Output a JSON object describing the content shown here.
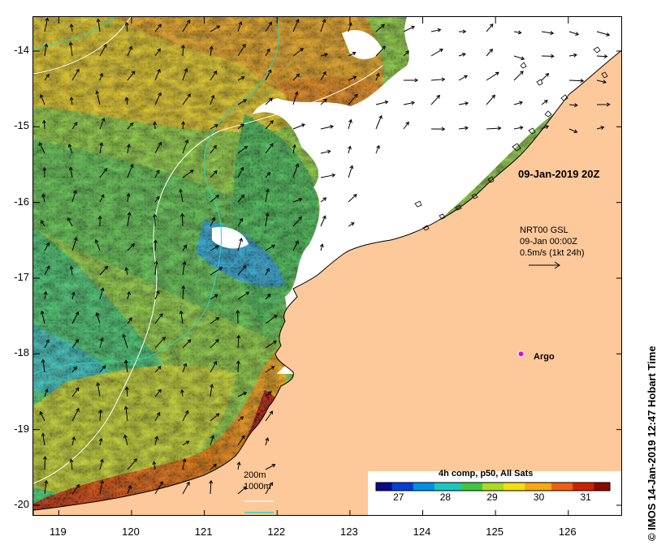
{
  "map": {
    "lon_ticks": [
      "119",
      "120",
      "121",
      "122",
      "123",
      "124",
      "125",
      "126"
    ],
    "lat_ticks": [
      "-14",
      "-15",
      "-16",
      "-17",
      "-18",
      "-19",
      "-20"
    ],
    "lon_range": [
      118.65,
      126.75
    ],
    "lat_range": [
      -13.55,
      -20.15
    ],
    "date_label": "09-Jan-2019 20Z",
    "current_legend": {
      "line1": "NRT00 GSL",
      "line2": "09-Jan 00:00Z",
      "line3": "0.5m/s (1kt 24h)"
    },
    "argo": {
      "label": "Argo",
      "lon": 125.35,
      "lat": -18.0,
      "color": "#e000e0"
    },
    "contour_legend": {
      "label_200": "200m",
      "label_1000": "1000m",
      "color_200": "#ffffff",
      "color_1000": "#2ad2c6"
    },
    "colorbar": {
      "title": "4h comp, p50, All Sats",
      "min": 26.5,
      "max": 31.5,
      "ticks": [
        "27",
        "28",
        "29",
        "30",
        "31"
      ],
      "tick_values": [
        27,
        28,
        29,
        30,
        31
      ]
    },
    "credit": "© IMOS 14-Jan-2019 12:47 Hobart Time",
    "colors": {
      "land": "#fdc89a",
      "cloud": "#ffffff",
      "coast": "#000000"
    }
  }
}
